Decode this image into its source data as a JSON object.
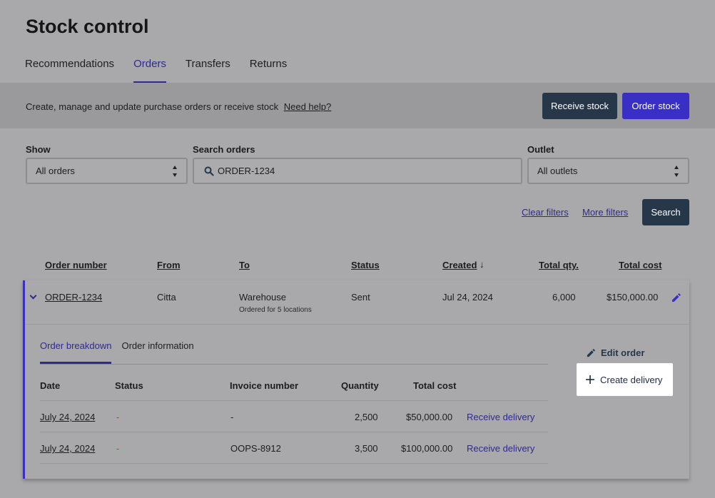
{
  "page": {
    "title": "Stock control"
  },
  "tabs": [
    {
      "label": "Recommendations",
      "active": false
    },
    {
      "label": "Orders",
      "active": true
    },
    {
      "label": "Transfers",
      "active": false
    },
    {
      "label": "Returns",
      "active": false
    }
  ],
  "actionbar": {
    "description": "Create, manage and update purchase orders or receive stock",
    "help_link": "Need help?",
    "receive_stock": "Receive stock",
    "order_stock": "Order stock"
  },
  "filters": {
    "show_label": "Show",
    "show_value": "All orders",
    "search_label": "Search orders",
    "search_value": "ORDER-1234",
    "outlet_label": "Outlet",
    "outlet_value": "All outlets",
    "clear_filters": "Clear filters",
    "more_filters": "More filters",
    "search_button": "Search"
  },
  "table": {
    "headers": {
      "order_number": "Order number",
      "from": "From",
      "to": "To",
      "status": "Status",
      "created": "Created",
      "created_sort": "↓",
      "total_qty": "Total qty.",
      "total_cost": "Total cost"
    },
    "row": {
      "order_number": "ORDER-1234",
      "from": "Citta",
      "to": "Warehouse",
      "to_sub": "Ordered for 5 locations",
      "status": "Sent",
      "created": "Jul 24, 2024",
      "total_qty": "6,000",
      "total_cost": "$150,000.00"
    }
  },
  "detail": {
    "tabs": [
      {
        "label": "Order breakdown",
        "active": true
      },
      {
        "label": "Order information",
        "active": false
      }
    ],
    "headers": {
      "date": "Date",
      "status": "Status",
      "invoice": "Invoice number",
      "quantity": "Quantity",
      "total_cost": "Total cost"
    },
    "rows": [
      {
        "date": "July 24, 2024",
        "status": "-",
        "invoice": "-",
        "quantity": "2,500",
        "total_cost": "$50,000.00",
        "action": "Receive delivery"
      },
      {
        "date": "July 24, 2024",
        "status": "-",
        "invoice": "OOPS-8912",
        "quantity": "3,500",
        "total_cost": "$100,000.00",
        "action": "Receive delivery"
      }
    ],
    "edit_order": "Edit order",
    "create_delivery": "Create delivery"
  },
  "colors": {
    "accent": "#3a2fc4",
    "dark_button": "#26374a",
    "status_dash": "#c0392b"
  },
  "icons": [
    "search-icon",
    "chevron-down-icon",
    "pencil-icon",
    "plus-icon",
    "sort-down-icon",
    "select-arrows-icon"
  ]
}
